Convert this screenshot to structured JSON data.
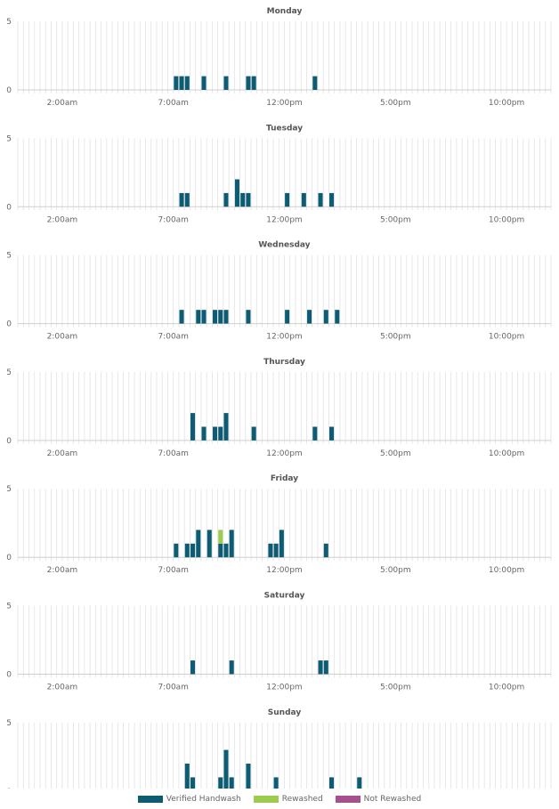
{
  "colors": {
    "verified": "#0d5c73",
    "rewashed": "#9ccc4e",
    "not_rewashed": "#a6508f",
    "grid": "#e2e2e2",
    "axis": "#cfcfcf",
    "text": "#666666",
    "title": "#555555"
  },
  "chart_data": {
    "type": "bar",
    "stacked": true,
    "bins_per_day": 96,
    "bin_minutes": 15,
    "x_ticks": [
      "2:00am",
      "7:00am",
      "12:00pm",
      "5:00pm",
      "10:00pm"
    ],
    "x_tick_hours": [
      2,
      7,
      12,
      17,
      22
    ],
    "y_ticks": [
      0,
      5
    ],
    "ylim": [
      0,
      5
    ],
    "grid": true,
    "legend_position": "bottom",
    "series": [
      {
        "name": "Verified Handwash",
        "color": "#0d5c73"
      },
      {
        "name": "Rewashed",
        "color": "#9ccc4e"
      },
      {
        "name": "Not Rewashed",
        "color": "#a6508f"
      }
    ],
    "days": [
      {
        "title": "Monday",
        "bars": [
          {
            "time": "7:00am",
            "verified": 1
          },
          {
            "time": "7:15am",
            "verified": 1
          },
          {
            "time": "7:30am",
            "verified": 1
          },
          {
            "time": "8:15am",
            "verified": 1
          },
          {
            "time": "9:15am",
            "verified": 1
          },
          {
            "time": "10:15am",
            "verified": 1
          },
          {
            "time": "10:30am",
            "verified": 1
          },
          {
            "time": "1:15pm",
            "verified": 1
          }
        ]
      },
      {
        "title": "Tuesday",
        "bars": [
          {
            "time": "7:15am",
            "verified": 1
          },
          {
            "time": "7:30am",
            "verified": 1
          },
          {
            "time": "9:15am",
            "verified": 1
          },
          {
            "time": "9:45am",
            "verified": 2
          },
          {
            "time": "10:00am",
            "verified": 1
          },
          {
            "time": "10:15am",
            "verified": 1
          },
          {
            "time": "12:00pm",
            "verified": 1
          },
          {
            "time": "12:45pm",
            "verified": 1
          },
          {
            "time": "1:30pm",
            "verified": 1
          },
          {
            "time": "2:00pm",
            "verified": 1
          }
        ]
      },
      {
        "title": "Wednesday",
        "bars": [
          {
            "time": "7:15am",
            "verified": 1
          },
          {
            "time": "8:00am",
            "verified": 1
          },
          {
            "time": "8:15am",
            "verified": 1
          },
          {
            "time": "8:45am",
            "verified": 1
          },
          {
            "time": "9:00am",
            "verified": 1
          },
          {
            "time": "9:15am",
            "verified": 1
          },
          {
            "time": "10:15am",
            "verified": 1
          },
          {
            "time": "12:00pm",
            "verified": 1
          },
          {
            "time": "1:00pm",
            "verified": 1
          },
          {
            "time": "1:45pm",
            "verified": 1
          },
          {
            "time": "2:15pm",
            "verified": 1
          }
        ]
      },
      {
        "title": "Thursday",
        "bars": [
          {
            "time": "7:45am",
            "verified": 2
          },
          {
            "time": "8:15am",
            "verified": 1
          },
          {
            "time": "8:45am",
            "verified": 1
          },
          {
            "time": "9:00am",
            "verified": 1
          },
          {
            "time": "9:15am",
            "verified": 2
          },
          {
            "time": "10:30am",
            "verified": 1
          },
          {
            "time": "1:15pm",
            "verified": 1
          },
          {
            "time": "2:00pm",
            "verified": 1
          }
        ]
      },
      {
        "title": "Friday",
        "bars": [
          {
            "time": "7:00am",
            "verified": 1
          },
          {
            "time": "7:30am",
            "verified": 1
          },
          {
            "time": "7:45am",
            "verified": 1
          },
          {
            "time": "8:00am",
            "verified": 2
          },
          {
            "time": "8:30am",
            "verified": 2
          },
          {
            "time": "9:00am",
            "verified": 1,
            "rewashed": 1
          },
          {
            "time": "9:15am",
            "verified": 1
          },
          {
            "time": "9:30am",
            "verified": 2
          },
          {
            "time": "11:15am",
            "verified": 1
          },
          {
            "time": "11:30am",
            "verified": 1
          },
          {
            "time": "11:45am",
            "verified": 2
          },
          {
            "time": "1:45pm",
            "verified": 1
          }
        ]
      },
      {
        "title": "Saturday",
        "bars": [
          {
            "time": "7:45am",
            "verified": 1
          },
          {
            "time": "9:30am",
            "verified": 1
          },
          {
            "time": "1:30pm",
            "verified": 1
          },
          {
            "time": "1:45pm",
            "verified": 1
          }
        ]
      },
      {
        "title": "Sunday",
        "bars": [
          {
            "time": "7:30am",
            "verified": 2
          },
          {
            "time": "7:45am",
            "verified": 1
          },
          {
            "time": "9:00am",
            "verified": 1
          },
          {
            "time": "9:15am",
            "verified": 3
          },
          {
            "time": "9:30am",
            "verified": 1
          },
          {
            "time": "10:15am",
            "verified": 2
          },
          {
            "time": "11:30am",
            "verified": 1
          },
          {
            "time": "2:00pm",
            "verified": 1
          },
          {
            "time": "3:15pm",
            "verified": 1
          }
        ]
      }
    ]
  },
  "legend": {
    "verified_label": "Verified Handwash",
    "rewashed_label": "Rewashed",
    "not_rewashed_label": "Not Rewashed"
  }
}
